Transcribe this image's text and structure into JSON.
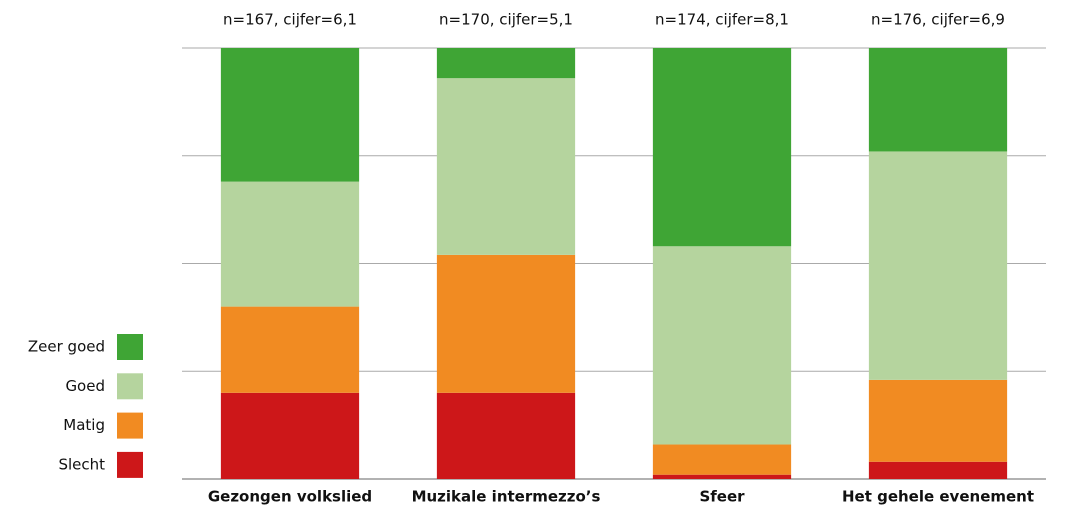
{
  "chart_data": {
    "type": "stacked_bar",
    "categories": [
      "Gezongen volkslied",
      "Muzikale intermezzo’s",
      "Sfeer",
      "Het gehele evenement"
    ],
    "annotations": [
      "n=167, cijfer=6,1",
      "n=170, cijfer=5,1",
      "n=174, cijfer=8,1",
      "n=176, cijfer=6,9"
    ],
    "series": [
      {
        "name": "Slecht",
        "color": "#cd1719",
        "values": [
          20,
          20,
          1,
          4
        ]
      },
      {
        "name": "Matig",
        "color": "#f18b22",
        "values": [
          20,
          32,
          7,
          19
        ]
      },
      {
        "name": "Goed",
        "color": "#b5d49e",
        "values": [
          29,
          41,
          46,
          53
        ]
      },
      {
        "name": "Zeer goed",
        "color": "#3fa535",
        "values": [
          31,
          7,
          46,
          24
        ]
      }
    ],
    "ylim": [
      0,
      100
    ],
    "yticks": [
      0,
      25,
      50,
      75,
      100
    ],
    "grid": true,
    "legend": "left"
  }
}
